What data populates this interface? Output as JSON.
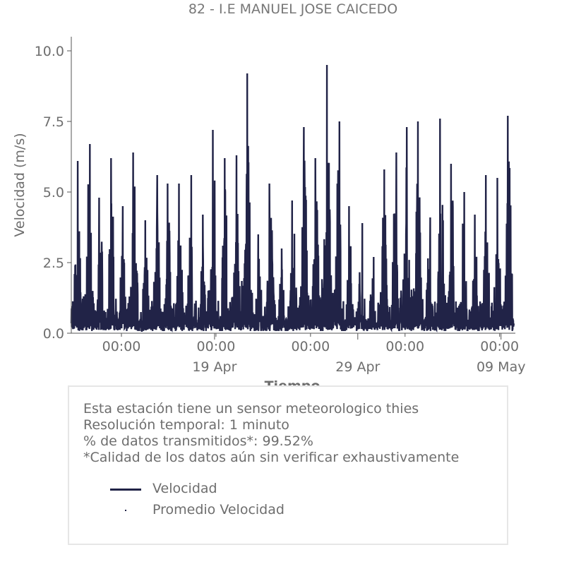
{
  "colors": {
    "series": "#212347",
    "axis": "#555555",
    "text": "#666666"
  },
  "chart_data": {
    "type": "line",
    "title": "82 - I.E MANUEL JOSE CAICEDO",
    "xlabel": "Tiempo",
    "ylabel": "Velocidad (m/s)",
    "ylim": [
      0,
      10.5
    ],
    "yticks": [
      "0.0",
      "2.5",
      "5.0",
      "7.5",
      "10.0"
    ],
    "xlim": [
      "2025-04-09",
      "2025-05-10"
    ],
    "xticks_minor": [
      "00:00",
      "00:00",
      "00:00",
      "00:00",
      "00:00"
    ],
    "xticks_major": [
      "19 Apr",
      "29 Apr",
      "09 May"
    ],
    "grid": false,
    "series": [
      {
        "name": "Velocidad",
        "style": "line",
        "daily_peaks": [
          6.1,
          6.7,
          4.8,
          6.2,
          4.5,
          6.4,
          4.0,
          5.6,
          5.3,
          5.3,
          5.6,
          4.2,
          7.2,
          6.2,
          6.3,
          9.2,
          3.5,
          5.3,
          3.0,
          4.7,
          7.3,
          6.2,
          9.5,
          7.5,
          4.5,
          3.9,
          2.7,
          5.8,
          6.4,
          7.3,
          7.5,
          4.1,
          7.6,
          6.0,
          5.0,
          4.2,
          5.6,
          5.5,
          7.7
        ]
      },
      {
        "name": "Promedio Velocidad",
        "style": "point"
      }
    ]
  },
  "info": {
    "line1": "Esta estación tiene un sensor meteorologico thies",
    "line2": "Resolución temporal: 1 minuto",
    "line3": "% de datos transmitidos*: 99.52%",
    "line4": "*Calidad de los datos aún sin verificar exhaustivamente"
  }
}
